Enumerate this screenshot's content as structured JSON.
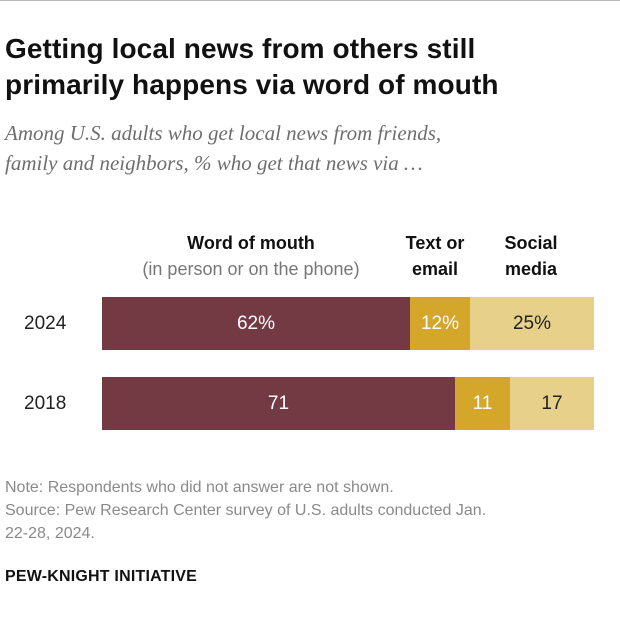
{
  "header": {
    "title_line1": "Getting local news from others still",
    "title_line2": "primarily happens via word of mouth",
    "subtitle_line1": "Among U.S. adults who get local news from friends,",
    "subtitle_line2": "family and neighbors, % who get that news via …"
  },
  "columns": {
    "word_of_mouth": {
      "label": "Word of mouth",
      "sublabel": "(in person or on the phone)"
    },
    "text_or_email": {
      "label_line1": "Text or",
      "label_line2": "email"
    },
    "social_media": {
      "label_line1": "Social",
      "label_line2": "media"
    }
  },
  "colors": {
    "word_of_mouth": "#733a44",
    "text_or_email": "#d4a62a",
    "social_media": "#e6d08a"
  },
  "chart_data": {
    "type": "bar",
    "orientation": "horizontal",
    "stacked": true,
    "categories": [
      "2024",
      "2018"
    ],
    "series": [
      {
        "name": "Word of mouth (in person or on the phone)",
        "values": [
          62,
          71
        ]
      },
      {
        "name": "Text or email",
        "values": [
          12,
          11
        ]
      },
      {
        "name": "Social media",
        "values": [
          25,
          17
        ]
      }
    ],
    "labels": [
      [
        "62%",
        "12%",
        "25%"
      ],
      [
        "71",
        "11",
        "17"
      ]
    ],
    "xlim": [
      0,
      99
    ]
  },
  "footer": {
    "note": "Note: Respondents who did not answer are not shown.",
    "source_line1": "Source: Pew Research Center survey of U.S. adults conducted Jan.",
    "source_line2": "22-28, 2024.",
    "brand": "PEW-KNIGHT INITIATIVE"
  }
}
